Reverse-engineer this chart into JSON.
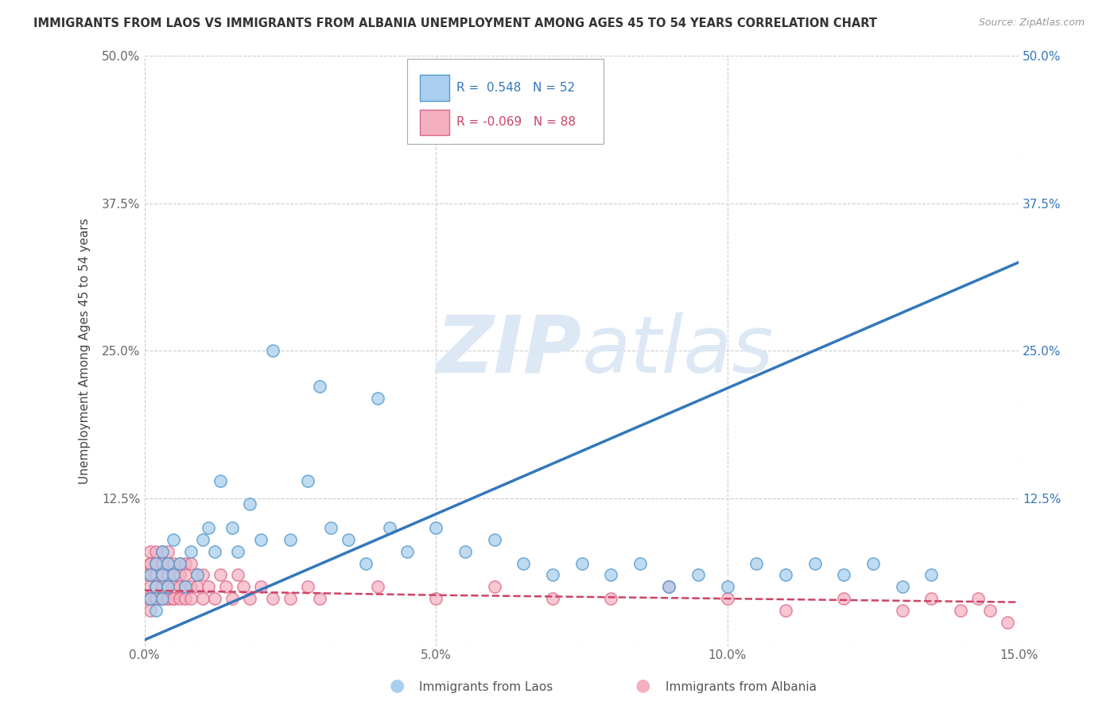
{
  "title": "IMMIGRANTS FROM LAOS VS IMMIGRANTS FROM ALBANIA UNEMPLOYMENT AMONG AGES 45 TO 54 YEARS CORRELATION CHART",
  "source": "Source: ZipAtlas.com",
  "ylabel": "Unemployment Among Ages 45 to 54 years",
  "xlim": [
    0.0,
    0.15
  ],
  "ylim": [
    0.0,
    0.5
  ],
  "xticks": [
    0.0,
    0.05,
    0.1,
    0.15
  ],
  "xticklabels": [
    "0.0%",
    "5.0%",
    "10.0%",
    "15.0%"
  ],
  "yticks": [
    0.0,
    0.125,
    0.25,
    0.375,
    0.5
  ],
  "yticklabels_left": [
    "",
    "12.5%",
    "25.0%",
    "37.5%",
    "50.0%"
  ],
  "yticklabels_right": [
    "",
    "12.5%",
    "25.0%",
    "37.5%",
    "50.0%"
  ],
  "laos_R": 0.548,
  "laos_N": 52,
  "albania_R": -0.069,
  "albania_N": 88,
  "laos_color": "#aacfee",
  "laos_edge": "#5599cc",
  "albania_color": "#f5b0c0",
  "albania_edge": "#dd6688",
  "laos_trend_color": "#3377bb",
  "albania_trend_color": "#cc4466",
  "background_color": "#ffffff",
  "grid_color": "#cccccc",
  "watermark_zip": "ZIP",
  "watermark_atlas": "atlas",
  "watermark_color": "#dde8f5",
  "laos_scatter_x": [
    0.001,
    0.001,
    0.002,
    0.002,
    0.002,
    0.003,
    0.003,
    0.003,
    0.004,
    0.004,
    0.005,
    0.005,
    0.006,
    0.007,
    0.008,
    0.009,
    0.01,
    0.011,
    0.012,
    0.013,
    0.015,
    0.016,
    0.018,
    0.02,
    0.022,
    0.025,
    0.028,
    0.03,
    0.032,
    0.035,
    0.038,
    0.04,
    0.042,
    0.045,
    0.05,
    0.055,
    0.06,
    0.065,
    0.07,
    0.075,
    0.08,
    0.085,
    0.09,
    0.095,
    0.1,
    0.105,
    0.11,
    0.115,
    0.12,
    0.125,
    0.13,
    0.135
  ],
  "laos_scatter_y": [
    0.04,
    0.06,
    0.03,
    0.07,
    0.05,
    0.04,
    0.08,
    0.06,
    0.05,
    0.07,
    0.06,
    0.09,
    0.07,
    0.05,
    0.08,
    0.06,
    0.09,
    0.1,
    0.08,
    0.14,
    0.1,
    0.08,
    0.12,
    0.09,
    0.25,
    0.09,
    0.14,
    0.22,
    0.1,
    0.09,
    0.07,
    0.21,
    0.1,
    0.08,
    0.1,
    0.08,
    0.09,
    0.07,
    0.06,
    0.07,
    0.06,
    0.07,
    0.05,
    0.06,
    0.05,
    0.07,
    0.06,
    0.07,
    0.06,
    0.07,
    0.05,
    0.06
  ],
  "albania_scatter_x": [
    0.0,
    0.0,
    0.001,
    0.001,
    0.001,
    0.001,
    0.001,
    0.001,
    0.001,
    0.001,
    0.001,
    0.002,
    0.002,
    0.002,
    0.002,
    0.002,
    0.002,
    0.002,
    0.002,
    0.002,
    0.002,
    0.003,
    0.003,
    0.003,
    0.003,
    0.003,
    0.003,
    0.003,
    0.003,
    0.003,
    0.003,
    0.004,
    0.004,
    0.004,
    0.004,
    0.004,
    0.004,
    0.004,
    0.004,
    0.005,
    0.005,
    0.005,
    0.005,
    0.005,
    0.005,
    0.006,
    0.006,
    0.006,
    0.006,
    0.007,
    0.007,
    0.007,
    0.007,
    0.008,
    0.008,
    0.008,
    0.009,
    0.009,
    0.01,
    0.01,
    0.011,
    0.012,
    0.013,
    0.014,
    0.015,
    0.016,
    0.017,
    0.018,
    0.02,
    0.022,
    0.025,
    0.028,
    0.03,
    0.04,
    0.05,
    0.06,
    0.07,
    0.08,
    0.09,
    0.1,
    0.11,
    0.12,
    0.13,
    0.135,
    0.14,
    0.143,
    0.145,
    0.148
  ],
  "albania_scatter_y": [
    0.04,
    0.06,
    0.03,
    0.07,
    0.04,
    0.06,
    0.05,
    0.08,
    0.04,
    0.06,
    0.07,
    0.04,
    0.06,
    0.05,
    0.07,
    0.04,
    0.08,
    0.05,
    0.06,
    0.07,
    0.04,
    0.05,
    0.07,
    0.04,
    0.06,
    0.05,
    0.08,
    0.04,
    0.06,
    0.07,
    0.05,
    0.04,
    0.06,
    0.05,
    0.07,
    0.04,
    0.06,
    0.05,
    0.08,
    0.04,
    0.06,
    0.05,
    0.07,
    0.04,
    0.06,
    0.05,
    0.07,
    0.04,
    0.06,
    0.05,
    0.07,
    0.04,
    0.06,
    0.05,
    0.07,
    0.04,
    0.06,
    0.05,
    0.04,
    0.06,
    0.05,
    0.04,
    0.06,
    0.05,
    0.04,
    0.06,
    0.05,
    0.04,
    0.05,
    0.04,
    0.04,
    0.05,
    0.04,
    0.05,
    0.04,
    0.05,
    0.04,
    0.04,
    0.05,
    0.04,
    0.03,
    0.04,
    0.03,
    0.04,
    0.03,
    0.04,
    0.03,
    0.02
  ],
  "laos_trend_x": [
    0.0,
    0.15
  ],
  "laos_trend_y": [
    0.005,
    0.325
  ],
  "albania_trend_x": [
    0.0,
    0.05,
    0.15
  ],
  "albania_trend_y": [
    0.047,
    0.043,
    0.037
  ]
}
